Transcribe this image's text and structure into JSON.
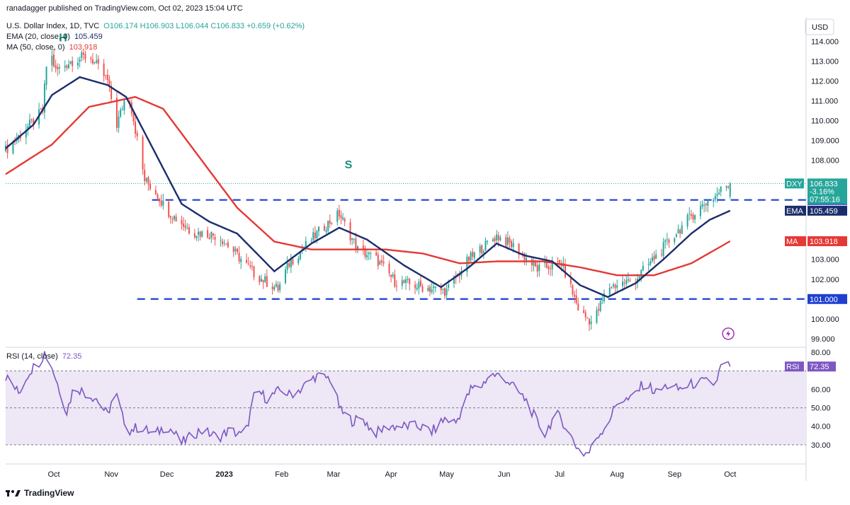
{
  "header": {
    "publisher": "ranadagger published on TradingView.com, Oct 02, 2023 15:04 UTC",
    "symbol": "U.S. Dollar Index, 1D, TVC",
    "ohlc": "O106.174 H106.903 L106.044 C106.833 +0.659 (+0.62%)",
    "ema_label": "EMA (20, close, 0)",
    "ema_value": "105.459",
    "ma_label": "MA (50, close, 0)",
    "ma_value": "103.918",
    "rsi_label": "RSI (14, close)",
    "rsi_value": "72.35"
  },
  "currency": "USD",
  "footer_brand": "TradingView",
  "colors": {
    "up": "#26a69a",
    "down": "#ef5350",
    "ema": "#1b2d6b",
    "ma": "#e53935",
    "rsi": "#7e57c2",
    "support_line": "#1f3fd1",
    "rsi_band": "#ede7f6"
  },
  "annotations": {
    "shoulder_left": "H",
    "shoulder_mid": "S"
  },
  "chart_data": [
    {
      "type": "candlestick",
      "title": "U.S. Dollar Index, 1D, TVC",
      "ylim": [
        98.6,
        115.2
      ],
      "y_ticks": [
        99,
        100,
        101,
        102,
        103,
        104,
        105,
        106,
        107,
        108,
        109,
        110,
        111,
        112,
        113,
        114
      ],
      "y_tick_labels": [
        "99.000",
        "100.000",
        "101.000",
        "102.000",
        "103.000",
        "",
        "",
        "",
        "",
        "108.000",
        "109.000",
        "110.000",
        "111.000",
        "112.000",
        "113.000",
        "114.000"
      ],
      "x_labels": [
        "Oct",
        "Nov",
        "Dec",
        "2023",
        "Feb",
        "Mar",
        "Apr",
        "May",
        "Jun",
        "Jul",
        "Aug",
        "Sep",
        "Oct"
      ],
      "x_label_days": [
        1,
        32,
        62,
        93,
        124,
        152,
        183,
        213,
        244,
        274,
        305,
        336,
        366
      ],
      "x_range_days": [
        -25,
        407
      ],
      "first_day": -25,
      "last_day": 366,
      "last_candle": {
        "o": 106.174,
        "h": 106.903,
        "l": 106.044,
        "c": 106.833
      },
      "close_path": [
        [
          -25,
          108.5
        ],
        [
          -5,
          110.5
        ],
        [
          -2,
          113.9
        ],
        [
          2,
          112.5
        ],
        [
          10,
          113.0
        ],
        [
          20,
          113.3
        ],
        [
          30,
          112.0
        ],
        [
          35,
          109.8
        ],
        [
          41,
          111.6
        ],
        [
          50,
          107.0
        ],
        [
          56,
          106.4
        ],
        [
          62,
          105.5
        ],
        [
          75,
          104.4
        ],
        [
          90,
          104.2
        ],
        [
          110,
          102.2
        ],
        [
          122,
          101.5
        ],
        [
          128,
          102.8
        ],
        [
          145,
          104.5
        ],
        [
          155,
          105.3
        ],
        [
          165,
          103.5
        ],
        [
          175,
          103.0
        ],
        [
          185,
          101.9
        ],
        [
          200,
          101.6
        ],
        [
          213,
          101.4
        ],
        [
          225,
          103.0
        ],
        [
          240,
          104.2
        ],
        [
          250,
          103.6
        ],
        [
          262,
          102.5
        ],
        [
          275,
          102.8
        ],
        [
          285,
          100.3
        ],
        [
          292,
          99.8
        ],
        [
          300,
          101.6
        ],
        [
          315,
          102.0
        ],
        [
          330,
          103.6
        ],
        [
          345,
          105.2
        ],
        [
          352,
          105.8
        ],
        [
          358,
          106.2
        ],
        [
          362,
          106.6
        ],
        [
          366,
          106.833
        ]
      ],
      "ema_path": [
        [
          -25,
          108.6
        ],
        [
          -10,
          109.8
        ],
        [
          0,
          111.3
        ],
        [
          15,
          112.2
        ],
        [
          30,
          111.8
        ],
        [
          40,
          111.2
        ],
        [
          55,
          108.5
        ],
        [
          70,
          105.8
        ],
        [
          85,
          104.9
        ],
        [
          100,
          104.3
        ],
        [
          120,
          102.4
        ],
        [
          140,
          103.8
        ],
        [
          155,
          104.6
        ],
        [
          170,
          104.0
        ],
        [
          190,
          102.7
        ],
        [
          210,
          101.6
        ],
        [
          225,
          102.6
        ],
        [
          240,
          103.8
        ],
        [
          255,
          103.2
        ],
        [
          270,
          102.9
        ],
        [
          285,
          101.7
        ],
        [
          300,
          101.1
        ],
        [
          315,
          101.8
        ],
        [
          330,
          103.0
        ],
        [
          345,
          104.3
        ],
        [
          355,
          105.0
        ],
        [
          366,
          105.459
        ]
      ],
      "ma_path": [
        [
          -25,
          107.3
        ],
        [
          0,
          108.8
        ],
        [
          20,
          110.7
        ],
        [
          45,
          111.2
        ],
        [
          60,
          110.6
        ],
        [
          80,
          108.1
        ],
        [
          100,
          105.6
        ],
        [
          120,
          103.9
        ],
        [
          140,
          103.5
        ],
        [
          160,
          103.5
        ],
        [
          180,
          103.5
        ],
        [
          200,
          103.3
        ],
        [
          220,
          102.8
        ],
        [
          240,
          102.9
        ],
        [
          265,
          102.9
        ],
        [
          285,
          102.6
        ],
        [
          305,
          102.2
        ],
        [
          325,
          102.2
        ],
        [
          345,
          102.8
        ],
        [
          366,
          103.918
        ]
      ],
      "horizontal_levels": [
        {
          "value": 106.0,
          "label": "106.000",
          "from_day": 54
        },
        {
          "value": 101.0,
          "label": "101.000",
          "from_day": 46
        }
      ],
      "price_labels": [
        {
          "text": "DXY",
          "value": 106.833,
          "extra": [
            "-3.16%",
            "07:55:16"
          ]
        },
        {
          "text": "EMA",
          "value": 105.459
        },
        {
          "text": "MA",
          "value": 103.918
        }
      ],
      "annotations": [
        {
          "text": "H",
          "day": 6,
          "value": 114.0
        },
        {
          "text": "S",
          "day": 160,
          "value": 107.6
        }
      ],
      "marker_day": 365,
      "marker_value": 99.25
    },
    {
      "type": "line",
      "title": "RSI (14, close)",
      "ylim": [
        20,
        82
      ],
      "y_ticks": [
        30,
        40,
        50,
        60,
        70,
        80
      ],
      "y_tick_labels": [
        "30.00",
        "40.00",
        "50.00",
        "60.00",
        "",
        "80.00"
      ],
      "band": [
        30,
        70
      ],
      "value": 72.35,
      "series": [
        {
          "values_path": [
            [
              -25,
              67
            ],
            [
              -18,
              58
            ],
            [
              -12,
              70
            ],
            [
              -6,
              76
            ],
            [
              -4,
              80
            ],
            [
              0,
              72
            ],
            [
              4,
              60
            ],
            [
              8,
              48
            ],
            [
              12,
              62
            ],
            [
              18,
              58
            ],
            [
              24,
              55
            ],
            [
              30,
              46
            ],
            [
              34,
              60
            ],
            [
              38,
              45
            ],
            [
              42,
              38
            ],
            [
              48,
              40
            ],
            [
              55,
              35
            ],
            [
              62,
              41
            ],
            [
              70,
              31
            ],
            [
              80,
              38
            ],
            [
              90,
              34
            ],
            [
              96,
              38
            ],
            [
              104,
              34
            ],
            [
              110,
              60
            ],
            [
              116,
              55
            ],
            [
              124,
              60
            ],
            [
              128,
              57
            ],
            [
              134,
              60
            ],
            [
              142,
              67
            ],
            [
              150,
              66
            ],
            [
              156,
              48
            ],
            [
              162,
              43
            ],
            [
              168,
              44
            ],
            [
              174,
              36
            ],
            [
              182,
              40
            ],
            [
              190,
              40
            ],
            [
              198,
              40
            ],
            [
              205,
              37
            ],
            [
              212,
              44
            ],
            [
              218,
              42
            ],
            [
              226,
              60
            ],
            [
              232,
              62
            ],
            [
              236,
              68
            ],
            [
              244,
              67
            ],
            [
              250,
              60
            ],
            [
              256,
              54
            ],
            [
              262,
              42
            ],
            [
              266,
              36
            ],
            [
              272,
              47
            ],
            [
              276,
              42
            ],
            [
              282,
              31
            ],
            [
              286,
              25
            ],
            [
              290,
              26
            ],
            [
              294,
              34
            ],
            [
              300,
              42
            ],
            [
              306,
              55
            ],
            [
              312,
              54
            ],
            [
              320,
              64
            ],
            [
              326,
              58
            ],
            [
              332,
              62
            ],
            [
              338,
              60
            ],
            [
              346,
              63
            ],
            [
              352,
              64
            ],
            [
              358,
              63
            ],
            [
              362,
              75
            ],
            [
              366,
              72.35
            ]
          ]
        }
      ]
    }
  ]
}
